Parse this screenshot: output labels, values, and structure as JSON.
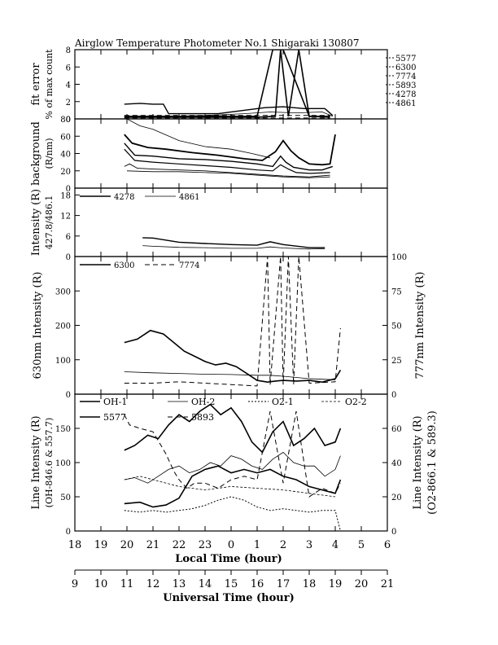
{
  "title": "Airglow Temperature Photometer No.1   Shigaraki   130807",
  "chart_data": [
    {
      "type": "line",
      "panel": "fit-error",
      "ylabel": [
        "fit error",
        "% of max count"
      ],
      "ylim": [
        0,
        8
      ],
      "yticks": [
        "0",
        "2",
        "4",
        "6",
        "8"
      ],
      "legend": [
        "5577",
        "6300",
        "7774",
        "5893",
        "4278",
        "4861"
      ],
      "series": [
        {
          "name": "4278",
          "x": [
            19.9,
            20.5,
            21.0,
            21.4,
            21.6,
            22.5,
            23.5,
            0.5,
            1.3,
            2.0,
            2.8,
            3.6,
            3.9
          ],
          "values": [
            1.7,
            1.8,
            1.7,
            1.7,
            0.6,
            0.6,
            0.6,
            1.0,
            1.3,
            1.4,
            1.2,
            1.2,
            0.4
          ]
        },
        {
          "name": "4861",
          "x": [
            21.6,
            23.0,
            0.5,
            1.5,
            2.5,
            3.5,
            3.9
          ],
          "values": [
            0.3,
            0.4,
            0.6,
            0.8,
            0.7,
            0.8,
            0.3
          ]
        },
        {
          "name": "5577",
          "x": [
            19.9,
            21.0,
            22.0,
            23.0,
            0.0,
            1.0,
            1.7,
            1.9,
            2.2,
            2.6,
            3.0,
            3.8
          ],
          "values": [
            0.2,
            0.2,
            0.2,
            0.2,
            0.2,
            0.2,
            0.3,
            8.0,
            0.3,
            8.0,
            0.3,
            0.2
          ]
        },
        {
          "name": "6300",
          "x": [
            19.9,
            21.0,
            22.0,
            23.0,
            0.0,
            1.0,
            1.6,
            2.0,
            3.0,
            3.8
          ],
          "values": [
            0.3,
            0.3,
            0.3,
            0.3,
            0.3,
            0.3,
            8.0,
            8.0,
            0.3,
            0.3
          ]
        },
        {
          "name": "7774",
          "x": [
            19.9,
            21.0,
            22.0,
            23.0,
            0.0,
            1.0,
            2.0,
            3.0,
            3.8
          ],
          "values": [
            0.1,
            0.1,
            0.1,
            0.1,
            0.1,
            0.1,
            0.1,
            0.1,
            0.1
          ]
        },
        {
          "name": "5893",
          "x": [
            19.9,
            21.0,
            22.0,
            23.0,
            0.0,
            1.0,
            2.0,
            3.0,
            3.8
          ],
          "values": [
            0.4,
            0.4,
            0.4,
            0.4,
            0.4,
            0.4,
            0.4,
            0.4,
            0.4
          ]
        }
      ]
    },
    {
      "type": "line",
      "panel": "background",
      "ylabel": [
        "background",
        "(R/nm)"
      ],
      "ylim": [
        0,
        80
      ],
      "yticks": [
        "0",
        "20",
        "40",
        "60",
        "80"
      ],
      "series": [
        {
          "name": "s1",
          "x": [
            19.9,
            20.2,
            20.8,
            21.5,
            22.5,
            23.5,
            0.5,
            1.2,
            1.7,
            2.0,
            2.3,
            2.6,
            3.0,
            3.5,
            3.8,
            4.0
          ],
          "values": [
            62,
            52,
            47,
            45,
            41,
            38,
            34,
            32,
            42,
            55,
            43,
            35,
            28,
            27,
            28,
            62
          ]
        },
        {
          "name": "s2",
          "x": [
            19.9,
            20.3,
            21.0,
            22.0,
            23.0,
            0.0,
            1.0,
            1.6,
            1.9,
            2.1,
            2.4,
            3.0,
            3.5,
            3.9
          ],
          "values": [
            52,
            38,
            37,
            34,
            33,
            31,
            28,
            25,
            37,
            30,
            24,
            21,
            21,
            25
          ]
        },
        {
          "name": "s3",
          "x": [
            19.9,
            20.3,
            21.0,
            22.0,
            23.0,
            0.0,
            1.0,
            1.6,
            1.9,
            2.2,
            2.5,
            3.0,
            3.8
          ],
          "values": [
            45,
            32,
            30,
            28,
            26,
            24,
            21,
            20,
            27,
            22,
            18,
            17,
            18
          ]
        },
        {
          "name": "s4",
          "x": [
            19.9,
            20.1,
            20.4,
            21.0,
            22.0,
            23.0,
            0.0,
            1.0,
            2.0,
            3.0,
            3.8
          ],
          "values": [
            25,
            28,
            23,
            22,
            21,
            20,
            18,
            16,
            14,
            13,
            15
          ]
        },
        {
          "name": "s5",
          "x": [
            20.0,
            21.0,
            22.0,
            23.0,
            0.0,
            1.0,
            2.0,
            3.0,
            3.8
          ],
          "values": [
            20,
            19,
            19,
            18,
            17,
            15,
            13,
            12,
            13
          ]
        },
        {
          "name": "s6",
          "x": [
            20.0,
            20.5,
            21.0,
            22.0,
            23.0,
            0.0,
            0.8,
            1.5
          ],
          "values": [
            80,
            72,
            68,
            55,
            48,
            45,
            40,
            35
          ]
        }
      ]
    },
    {
      "type": "line",
      "panel": "blue-lines",
      "ylabel": [
        "Intensity (R)",
        "427.8/486.1"
      ],
      "ylim": [
        0,
        20
      ],
      "yticks": [
        "0",
        "6",
        "12",
        "18"
      ],
      "legend": [
        "4278",
        "4861"
      ],
      "series": [
        {
          "name": "4278",
          "x": [
            20.6,
            21.0,
            22.0,
            23.0,
            0.0,
            1.0,
            1.5,
            2.0,
            3.0,
            3.6
          ],
          "values": [
            5.5,
            5.4,
            4.2,
            3.8,
            3.5,
            3.3,
            4.3,
            3.5,
            2.6,
            2.6
          ]
        },
        {
          "name": "4861",
          "x": [
            20.6,
            21.0,
            22.0,
            23.0,
            0.0,
            1.0,
            1.5,
            2.0,
            3.0,
            3.6
          ],
          "values": [
            3.2,
            3.0,
            2.7,
            2.6,
            2.4,
            2.4,
            2.8,
            2.5,
            2.2,
            2.3
          ]
        }
      ]
    },
    {
      "type": "line",
      "panel": "red-lines",
      "ylabel_left": "630nm Intensity (R)",
      "ylabel_right": "777nm Intensity (R)",
      "ylim_left": [
        0,
        400
      ],
      "ylim_right": [
        0,
        100
      ],
      "yticks_left": [
        "0",
        "100",
        "200",
        "300"
      ],
      "yticks_right": [
        "0",
        "25",
        "50",
        "75",
        "100"
      ],
      "legend": [
        "6300",
        "7774"
      ],
      "series": [
        {
          "name": "6300",
          "axis": "left",
          "x": [
            19.9,
            20.4,
            20.9,
            21.4,
            21.8,
            22.2,
            22.6,
            23.0,
            23.4,
            23.8,
            0.2,
            0.6,
            1.0,
            1.4,
            1.7,
            2.0,
            2.5,
            3.0,
            3.5,
            4.0,
            4.2
          ],
          "values": [
            150,
            160,
            185,
            175,
            150,
            125,
            110,
            95,
            85,
            90,
            80,
            60,
            40,
            35,
            38,
            40,
            38,
            40,
            35,
            45,
            70
          ]
        },
        {
          "name": "6300b",
          "axis": "left",
          "x": [
            19.9,
            21.0,
            22.0,
            23.0,
            0.0,
            1.0,
            1.5,
            2.0,
            3.0,
            4.0
          ],
          "values": [
            65,
            62,
            60,
            58,
            57,
            55,
            55,
            52,
            45,
            42
          ]
        },
        {
          "name": "7774",
          "axis": "right",
          "x": [
            19.9,
            20.5,
            21.0,
            22.0,
            23.0,
            0.0,
            1.0,
            1.4,
            1.5,
            1.9,
            2.0,
            2.2,
            2.4,
            2.6,
            3.0,
            4.0,
            4.2
          ],
          "values": [
            8,
            8,
            8,
            9,
            8,
            7,
            6,
            100,
            7,
            100,
            7,
            100,
            7,
            100,
            8,
            9,
            48
          ]
        }
      ]
    },
    {
      "type": "line",
      "panel": "green-OH-O2",
      "ylabel_left": [
        "Line Intensity (R)",
        "(OH-846.6 & 557.7)"
      ],
      "ylabel_right": [
        "Line Intensity (R)",
        "(O2-866.1 & 589.3)"
      ],
      "ylim_left": [
        0,
        200
      ],
      "ylim_right": [
        0,
        80
      ],
      "yticks_left": [
        "0",
        "50",
        "100",
        "150"
      ],
      "yticks_right": [
        "0",
        "20",
        "40",
        "60"
      ],
      "legend": [
        "OH-1",
        "OH-2",
        "O2-1",
        "O2-2",
        "5577",
        "5893"
      ],
      "series": [
        {
          "name": "OH-1",
          "x": [
            19.9,
            20.3,
            20.8,
            21.2,
            21.6,
            22.0,
            22.4,
            22.8,
            23.2,
            23.6,
            0.0,
            0.4,
            0.8,
            1.2,
            1.6,
            2.0,
            2.4,
            2.8,
            3.2,
            3.6,
            4.0,
            4.2
          ],
          "values": [
            118,
            125,
            140,
            135,
            155,
            170,
            160,
            175,
            185,
            170,
            180,
            160,
            130,
            115,
            145,
            160,
            125,
            135,
            150,
            125,
            130,
            150
          ]
        },
        {
          "name": "OH-2",
          "x": [
            19.9,
            20.3,
            20.8,
            21.2,
            21.6,
            22.0,
            22.4,
            22.8,
            23.2,
            23.6,
            0.0,
            0.4,
            0.8,
            1.2,
            1.6,
            2.0,
            2.4,
            2.8,
            3.2,
            3.6,
            4.0,
            4.2
          ],
          "values": [
            75,
            78,
            70,
            80,
            90,
            95,
            85,
            90,
            100,
            95,
            110,
            105,
            95,
            90,
            105,
            115,
            100,
            95,
            95,
            80,
            90,
            110
          ]
        },
        {
          "name": "5577",
          "x": [
            19.9,
            20.5,
            21.0,
            21.5,
            22.0,
            22.5,
            23.0,
            23.5,
            0.0,
            0.5,
            1.0,
            1.5,
            2.0,
            2.5,
            3.0,
            3.5,
            4.0,
            4.2
          ],
          "values": [
            40,
            42,
            35,
            38,
            48,
            80,
            90,
            95,
            85,
            90,
            85,
            90,
            80,
            75,
            65,
            60,
            55,
            75
          ]
        },
        {
          "name": "O2-1",
          "axis": "right",
          "x": [
            19.9,
            20.5,
            21.0,
            21.5,
            22.0,
            22.5,
            23.0,
            23.5,
            0.0,
            0.5,
            1.0,
            1.5,
            2.0,
            2.5,
            3.0,
            3.5,
            4.0,
            4.2
          ],
          "values": [
            12,
            11,
            12,
            11,
            12,
            13,
            15,
            18,
            20,
            18,
            14,
            12,
            13,
            12,
            11,
            12,
            12,
            0
          ]
        },
        {
          "name": "O2-2",
          "axis": "right",
          "x": [
            19.9,
            20.5,
            21.0,
            21.5,
            22.0,
            22.5,
            23.0,
            0.0,
            1.0,
            2.0,
            3.0,
            4.0
          ],
          "values": [
            30,
            32,
            30,
            28,
            26,
            25,
            24,
            26,
            25,
            24,
            22,
            20
          ]
        },
        {
          "name": "5893",
          "axis": "right",
          "x": [
            19.9,
            20.1,
            20.5,
            21.0,
            21.5,
            21.8,
            22.0,
            22.3,
            22.6,
            23.0,
            23.5,
            0.0,
            0.5,
            1.0,
            1.5,
            2.0,
            2.5,
            3.0,
            3.5,
            4.0,
            4.2
          ],
          "values": [
            68,
            62,
            60,
            58,
            45,
            35,
            30,
            25,
            28,
            28,
            25,
            30,
            32,
            30,
            70,
            28,
            70,
            20,
            25,
            22,
            28
          ]
        }
      ]
    }
  ],
  "x_axis": {
    "label": "Local Time (hour)",
    "ticks": [
      "18",
      "19",
      "20",
      "21",
      "22",
      "23",
      "0",
      "1",
      "2",
      "3",
      "4",
      "5",
      "6"
    ]
  },
  "x_axis_ut": {
    "label": "Universal Time (hour)",
    "ticks": [
      "9",
      "10",
      "11",
      "12",
      "13",
      "14",
      "15",
      "16",
      "17",
      "18",
      "19",
      "20",
      "21"
    ]
  }
}
